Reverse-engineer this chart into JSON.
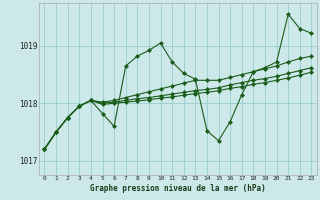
{
  "background_color": "#cce8e8",
  "grid_color": "#99cccc",
  "line_color": "#1a5c1a",
  "title": "Graphe pression niveau de la mer (hPa)",
  "ylim": [
    1016.75,
    1019.75
  ],
  "xlim": [
    -0.5,
    23.5
  ],
  "yticks": [
    1017,
    1018,
    1019
  ],
  "xticks": [
    0,
    1,
    2,
    3,
    4,
    5,
    6,
    7,
    8,
    9,
    10,
    11,
    12,
    13,
    14,
    15,
    16,
    17,
    18,
    19,
    20,
    21,
    22,
    23
  ],
  "series1": [
    1017.2,
    1017.5,
    1017.75,
    1017.95,
    1018.05,
    1017.82,
    1017.6,
    1018.65,
    1018.82,
    1018.92,
    1019.05,
    1018.72,
    1018.52,
    1018.42,
    1017.52,
    1017.35,
    1017.68,
    1018.15,
    1018.55,
    1018.62,
    1018.72,
    1019.55,
    1019.3,
    1019.22
  ],
  "series2": [
    1017.2,
    1017.5,
    1017.75,
    1017.95,
    1018.05,
    1018.02,
    1018.05,
    1018.1,
    1018.15,
    1018.2,
    1018.25,
    1018.3,
    1018.35,
    1018.4,
    1018.4,
    1018.4,
    1018.45,
    1018.5,
    1018.55,
    1018.6,
    1018.65,
    1018.72,
    1018.78,
    1018.82
  ],
  "series3": [
    1017.2,
    1017.5,
    1017.75,
    1017.95,
    1018.05,
    1018.0,
    1018.02,
    1018.05,
    1018.08,
    1018.1,
    1018.13,
    1018.16,
    1018.19,
    1018.22,
    1018.24,
    1018.27,
    1018.32,
    1018.36,
    1018.4,
    1018.43,
    1018.47,
    1018.52,
    1018.57,
    1018.62
  ],
  "series4": [
    1017.2,
    1017.5,
    1017.75,
    1017.95,
    1018.05,
    1017.98,
    1018.0,
    1018.02,
    1018.04,
    1018.06,
    1018.09,
    1018.11,
    1018.14,
    1018.17,
    1018.19,
    1018.22,
    1018.26,
    1018.29,
    1018.33,
    1018.36,
    1018.4,
    1018.44,
    1018.49,
    1018.54
  ]
}
